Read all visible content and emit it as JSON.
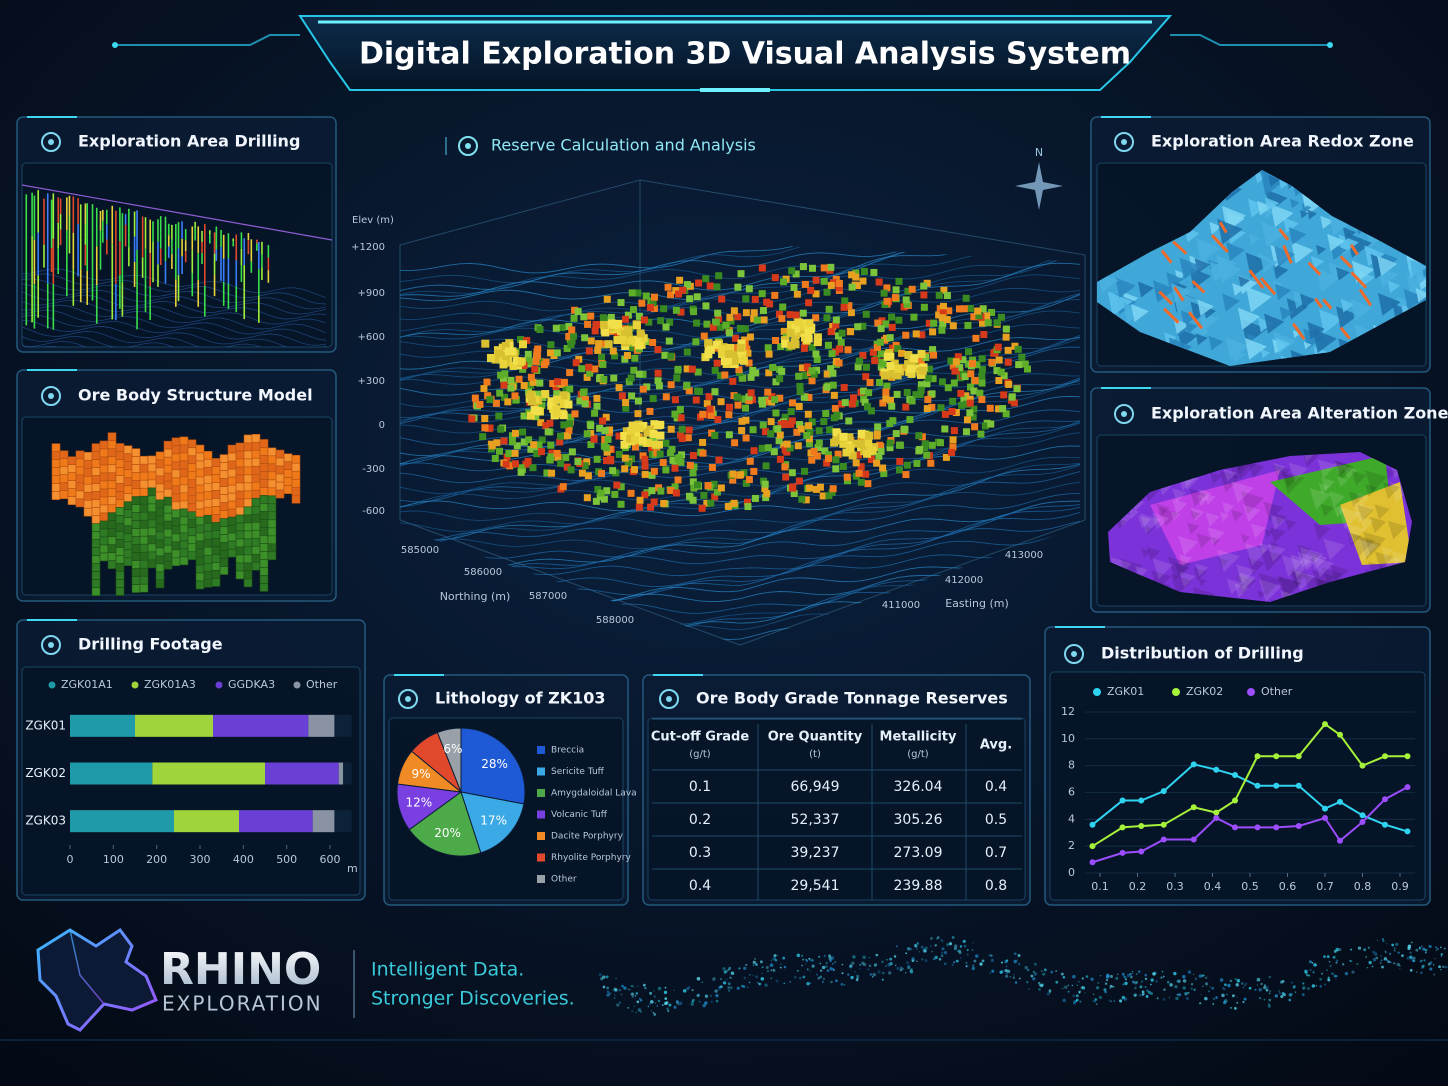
{
  "header": {
    "title": "Digital Exploration 3D Visual Analysis System"
  },
  "panels": {
    "drilling": {
      "title": "Exploration Area Drilling"
    },
    "ore_body": {
      "title": "Ore Body Structure Model"
    },
    "redox": {
      "title": "Exploration Area Redox Zone"
    },
    "alteration": {
      "title": "Exploration Area Alteration Zone"
    }
  },
  "reserve": {
    "title": "Reserve Calculation and Analysis",
    "compass": "N",
    "elev_label": "Elev (m)",
    "elev_ticks": [
      "+1200",
      "+900",
      "+600",
      "+300",
      "0",
      "-300",
      "-600"
    ],
    "northing_label": "Northing (m)",
    "northing_ticks": [
      "585000",
      "586000",
      "587000",
      "588000"
    ],
    "easting_label": "Easting (m)",
    "easting_ticks": [
      "413000",
      "412000",
      "411000"
    ]
  },
  "chart_data": [
    {
      "type": "bar",
      "orientation": "horizontal",
      "stacked": true,
      "title": "Drilling Footage",
      "categories": [
        "ZGK01",
        "ZGK02",
        "ZGK03"
      ],
      "series": [
        {
          "name": "ZGK01A1",
          "color": "#1f9aa8",
          "values": [
            150,
            190,
            240
          ]
        },
        {
          "name": "ZGK01A3",
          "color": "#9fd43a",
          "values": [
            180,
            260,
            150
          ]
        },
        {
          "name": "GGDKA3",
          "color": "#6a3fd6",
          "values": [
            220,
            170,
            170
          ]
        },
        {
          "name": "Other",
          "color": "#8a93a3",
          "values": [
            60,
            10,
            50
          ]
        }
      ],
      "xlim": [
        0,
        650
      ],
      "xticks": [
        0,
        100,
        200,
        300,
        400,
        500,
        600
      ],
      "x_unit": "m"
    },
    {
      "type": "pie",
      "title": "Lithology of ZK103",
      "categories": [
        "Breccia",
        "Sericite Tuff",
        "Amygdaloidal Lava",
        "Volcanic Tuff",
        "Dacite Porphyry",
        "Rhyolite Porphyry",
        "Other"
      ],
      "values": [
        28,
        17,
        20,
        12,
        9,
        8,
        6
      ],
      "value_labels": [
        "28%",
        "17%",
        "20%",
        "12%",
        "9%",
        null,
        "6%"
      ],
      "colors": [
        "#1f5ad6",
        "#3aa9e6",
        "#4caa48",
        "#7a3fe0",
        "#f08a24",
        "#e2482c",
        "#9aa0a8"
      ]
    },
    {
      "type": "line",
      "title": "Distribution of Drilling",
      "x": [
        0.08,
        0.16,
        0.21,
        0.27,
        0.35,
        0.41,
        0.46,
        0.52,
        0.57,
        0.63,
        0.7,
        0.74,
        0.8,
        0.86,
        0.92
      ],
      "series": [
        {
          "name": "ZGK01",
          "color": "#2fd3f0",
          "values": [
            3.6,
            5.4,
            5.4,
            6.1,
            8.1,
            7.7,
            7.3,
            6.5,
            6.5,
            6.5,
            4.8,
            5.3,
            4.3,
            3.6,
            3.1
          ]
        },
        {
          "name": "ZGK02",
          "color": "#a6f23a",
          "values": [
            2.0,
            3.4,
            3.5,
            3.6,
            4.9,
            4.5,
            5.4,
            8.7,
            8.7,
            8.7,
            11.1,
            10.3,
            8.0,
            8.7,
            8.7
          ]
        },
        {
          "name": "Other",
          "color": "#9b4dff",
          "values": [
            0.8,
            1.5,
            1.6,
            2.5,
            2.5,
            4.1,
            3.4,
            3.4,
            3.4,
            3.5,
            4.1,
            2.4,
            3.8,
            5.5,
            6.4
          ]
        }
      ],
      "xlim": [
        0.06,
        0.94
      ],
      "xticks": [
        0.1,
        0.2,
        0.3,
        0.4,
        0.5,
        0.6,
        0.7,
        0.8,
        0.9
      ],
      "ylim": [
        0,
        12
      ],
      "yticks": [
        0,
        2,
        4,
        6,
        8,
        10,
        12
      ],
      "grid": true
    }
  ],
  "table": {
    "title": "Ore Body Grade Tonnage Reserves",
    "header": [
      {
        "label": "Cut-off Grade",
        "unit": "(g/t)"
      },
      {
        "label": "Ore Quantity",
        "unit": "(t)"
      },
      {
        "label": "Metallicity",
        "unit": "(g/t)"
      },
      {
        "label": "Avg."
      }
    ],
    "rows": [
      [
        "0.1",
        "66,949",
        "326.04",
        "0.4"
      ],
      [
        "0.2",
        "52,337",
        "305.26",
        "0.5"
      ],
      [
        "0.3",
        "39,237",
        "273.09",
        "0.7"
      ],
      [
        "0.4",
        "29,541",
        "239.88",
        "0.8"
      ]
    ]
  },
  "footer": {
    "brand": "RHINO",
    "sub": "EXPLORATION",
    "tagline": [
      "Intelligent Data.",
      "Stronger Discoveries."
    ]
  }
}
